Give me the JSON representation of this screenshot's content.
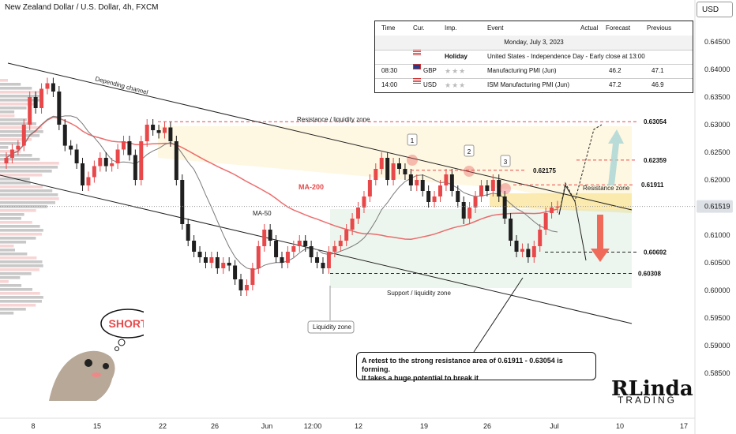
{
  "header": {
    "title": "New Zealand Dollar / U.S. Dollar, 4h, FXCM",
    "currency_button": "USD"
  },
  "calendar": {
    "columns": [
      "Time",
      "Cur.",
      "Imp.",
      "Event",
      "Actual",
      "Forecast",
      "Previous"
    ],
    "date": "Monday, July 3, 2023",
    "rows": [
      {
        "time": "",
        "cur": "",
        "imp": "Holiday",
        "event": "United States - Independence Day - Early close at 13:00",
        "actual": "",
        "forecast": "",
        "previous": ""
      },
      {
        "time": "08:30",
        "cur": "GBP",
        "imp": "★★★",
        "event": "Manufacturing PMI (Jun)",
        "actual": "",
        "forecast": "46.2",
        "previous": "47.1"
      },
      {
        "time": "14:00",
        "cur": "USD",
        "imp": "★★★",
        "event": "ISM Manufacturing PMI (Jun)",
        "actual": "",
        "forecast": "47.2",
        "previous": "46.9"
      }
    ]
  },
  "callout": {
    "line1": "A retest to the strong resistance area of 0.61911 - 0.63054 is forming.",
    "line2": "It takes a huge potential to break it"
  },
  "mascot_text": "SHORT",
  "logo": {
    "main": "RLinda",
    "sub": "TRADING"
  },
  "chart_data": {
    "type": "candlestick",
    "title": "New Zealand Dollar / U.S. Dollar, 4h, FXCM",
    "ylim": [
      0.58,
      0.65
    ],
    "y_ticks": [
      "0.64500",
      "0.64000",
      "0.63500",
      "0.63000",
      "0.62500",
      "0.62000",
      "0.61500",
      "0.61000",
      "0.60500",
      "0.60000",
      "0.59500",
      "0.59000",
      "0.58500"
    ],
    "x_ticks": [
      "8",
      "15",
      "22",
      "26",
      "Jun",
      "12:00",
      "12",
      "19",
      "26",
      "Jul",
      "10",
      "17"
    ],
    "current_price": "0.61519",
    "levels": [
      {
        "label": "0.63054",
        "value": 0.63054
      },
      {
        "label": "0.62359",
        "value": 0.62359
      },
      {
        "label": "0.62175",
        "value": 0.62175
      },
      {
        "label": "0.61911",
        "value": 0.61911
      },
      {
        "label": "0.60692",
        "value": 0.60692
      },
      {
        "label": "0.60308",
        "value": 0.60308
      }
    ],
    "annotations": [
      {
        "text": "Depending channel"
      },
      {
        "text": "Resistance / liquidity zone"
      },
      {
        "text": "Support / liquidity zone"
      },
      {
        "text": "Resistance zone"
      },
      {
        "text": "Liquidity zone"
      },
      {
        "text": "MA-200"
      },
      {
        "text": "MA-50"
      },
      {
        "text": "1"
      },
      {
        "text": "2"
      },
      {
        "text": "3"
      }
    ],
    "colors": {
      "up": "#e8484a",
      "down": "#1f1f1f",
      "ma200": "#e8484a",
      "ma50": "#7a7a7a",
      "resistance_fill": "#fbe8a8",
      "support_fill": "#d6ecd9",
      "arrow_up": "#a9d4d6",
      "arrow_down": "#f06a5a"
    },
    "close_series": [
      0.624,
      0.6255,
      0.6262,
      0.63,
      0.635,
      0.633,
      0.6365,
      0.6375,
      0.636,
      0.63,
      0.6262,
      0.6255,
      0.623,
      0.619,
      0.6205,
      0.6225,
      0.624,
      0.6225,
      0.623,
      0.6255,
      0.627,
      0.6245,
      0.62,
      0.627,
      0.63,
      0.629,
      0.6285,
      0.6295,
      0.627,
      0.62,
      0.612,
      0.609,
      0.607,
      0.606,
      0.605,
      0.606,
      0.604,
      0.605,
      0.6045,
      0.602,
      0.6,
      0.601,
      0.604,
      0.608,
      0.611,
      0.609,
      0.606,
      0.605,
      0.607,
      0.608,
      0.609,
      0.608,
      0.606,
      0.605,
      0.604,
      0.607,
      0.608,
      0.609,
      0.611,
      0.613,
      0.615,
      0.617,
      0.62,
      0.622,
      0.624,
      0.62,
      0.623,
      0.622,
      0.621,
      0.619,
      0.62,
      0.618,
      0.616,
      0.617,
      0.619,
      0.621,
      0.618,
      0.616,
      0.613,
      0.615,
      0.617,
      0.619,
      0.618,
      0.62,
      0.617,
      0.613,
      0.609,
      0.607,
      0.6075,
      0.606,
      0.608,
      0.611,
      0.614,
      0.615,
      0.6152
    ]
  }
}
